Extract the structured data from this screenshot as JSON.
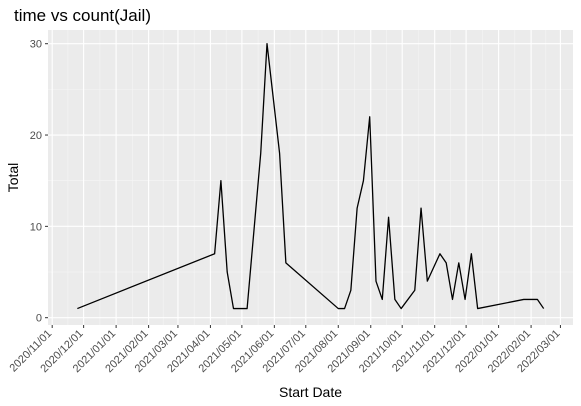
{
  "chart_data": {
    "type": "line",
    "title": "time vs count(Jail)",
    "xlabel": "Start Date",
    "ylabel": "Total",
    "x_ticks": [
      "2020/11/01",
      "2020/12/01",
      "2021/01/01",
      "2021/02/01",
      "2021/03/01",
      "2021/04/01",
      "2021/05/01",
      "2021/06/01",
      "2021/07/01",
      "2021/08/01",
      "2021/09/01",
      "2021/10/01",
      "2021/11/01",
      "2021/12/01",
      "2022/01/01",
      "2022/02/01",
      "2022/03/01"
    ],
    "y_ticks": [
      0,
      10,
      20,
      30
    ],
    "xlim": [
      "2020/10/28",
      "2022/03/13"
    ],
    "ylim": [
      -0.8,
      31.5
    ],
    "grid": true,
    "series": [
      {
        "color": "#000000",
        "points": [
          {
            "x": "2020/11/25",
            "y": 1
          },
          {
            "x": "2021/04/05",
            "y": 7
          },
          {
            "x": "2021/04/11",
            "y": 15
          },
          {
            "x": "2021/04/17",
            "y": 5
          },
          {
            "x": "2021/04/23",
            "y": 1
          },
          {
            "x": "2021/05/06",
            "y": 1
          },
          {
            "x": "2021/05/19",
            "y": 18
          },
          {
            "x": "2021/05/25",
            "y": 30
          },
          {
            "x": "2021/05/31",
            "y": 24
          },
          {
            "x": "2021/06/06",
            "y": 18
          },
          {
            "x": "2021/06/12",
            "y": 6
          },
          {
            "x": "2021/08/01",
            "y": 1
          },
          {
            "x": "2021/08/07",
            "y": 1
          },
          {
            "x": "2021/08/13",
            "y": 3
          },
          {
            "x": "2021/08/19",
            "y": 12
          },
          {
            "x": "2021/08/25",
            "y": 15
          },
          {
            "x": "2021/08/31",
            "y": 22
          },
          {
            "x": "2021/09/06",
            "y": 4
          },
          {
            "x": "2021/09/12",
            "y": 2
          },
          {
            "x": "2021/09/18",
            "y": 11
          },
          {
            "x": "2021/09/24",
            "y": 2
          },
          {
            "x": "2021/09/30",
            "y": 1
          },
          {
            "x": "2021/10/13",
            "y": 3
          },
          {
            "x": "2021/10/19",
            "y": 12
          },
          {
            "x": "2021/10/25",
            "y": 4
          },
          {
            "x": "2021/11/06",
            "y": 7
          },
          {
            "x": "2021/11/12",
            "y": 6
          },
          {
            "x": "2021/11/18",
            "y": 2
          },
          {
            "x": "2021/11/24",
            "y": 6
          },
          {
            "x": "2021/11/30",
            "y": 2
          },
          {
            "x": "2021/12/06",
            "y": 7
          },
          {
            "x": "2021/12/12",
            "y": 1
          },
          {
            "x": "2022/01/25",
            "y": 2
          },
          {
            "x": "2022/02/07",
            "y": 2
          },
          {
            "x": "2022/02/13",
            "y": 1
          }
        ]
      }
    ]
  }
}
